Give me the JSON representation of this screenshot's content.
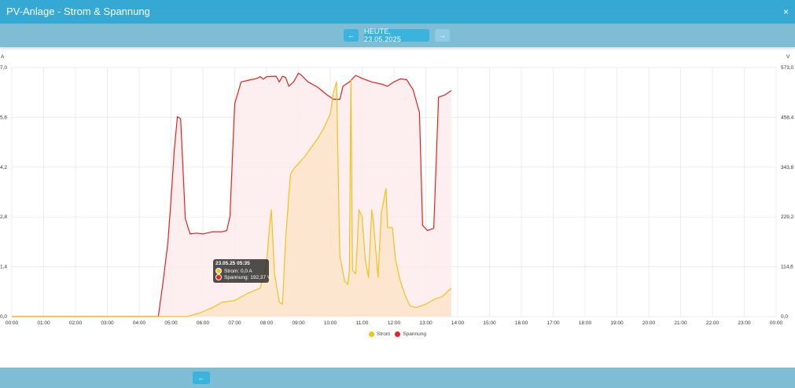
{
  "window": {
    "title": "PV-Anlage - Strom & Spannung",
    "close_glyph": "×"
  },
  "nav": {
    "prev_glyph": "←",
    "date_label": "HEUTE, 23.05.2025",
    "next_glyph": "→"
  },
  "footer": {
    "back_glyph": "←"
  },
  "tooltip": {
    "title": "23.05.25 05:35",
    "rows": [
      {
        "label": "Strom: 0,0 A",
        "color": "#f5c518"
      },
      {
        "label": "Spannung: 192,37 V",
        "color": "#e8201f"
      }
    ]
  },
  "colors": {
    "strom": "#f2c21a",
    "spannung": "#e8201f",
    "strom_fill": "#fbe3c8",
    "spannung_fill": "#fcebeb"
  },
  "chart_data": {
    "type": "line",
    "left_axis_unit": "A",
    "right_axis_unit": "V",
    "left_ticks": [
      "0,0",
      "1,4",
      "2,8",
      "4,2",
      "5,6",
      "7,0"
    ],
    "right_ticks": [
      "0,0",
      "114,6",
      "229,2",
      "343,8",
      "458,4",
      "573,0"
    ],
    "ylim_left": [
      0,
      7.0
    ],
    "ylim_right": [
      0,
      573.0
    ],
    "xlim": [
      0,
      24
    ],
    "x_ticks": [
      "00:00",
      "01:00",
      "02:00",
      "03:00",
      "04:00",
      "05:00",
      "06:00",
      "07:00",
      "08:00",
      "09:00",
      "10:00",
      "11:00",
      "12:00",
      "13:00",
      "14:00",
      "15:00",
      "16:00",
      "17:00",
      "18:00",
      "19:00",
      "20:00",
      "21:00",
      "22:00",
      "23:00",
      "00:00"
    ],
    "grid": true,
    "legend_position": "bottom",
    "series": [
      {
        "name": "Strom",
        "axis": "left",
        "x": [
          0,
          4.5,
          5.5,
          5.9,
          6.3,
          6.6,
          7.0,
          7.4,
          7.8,
          8.0,
          8.1,
          8.15,
          8.25,
          8.4,
          8.5,
          8.6,
          8.75,
          8.85,
          9.0,
          9.2,
          9.4,
          9.6,
          9.8,
          10.0,
          10.1,
          10.2,
          10.25,
          10.3,
          10.45,
          10.55,
          10.6,
          10.65,
          10.7,
          10.8,
          10.9,
          11.0,
          11.1,
          11.2,
          11.3,
          11.35,
          11.5,
          11.6,
          11.75,
          11.8,
          11.95,
          12.05,
          12.2,
          12.35,
          12.5,
          12.7,
          13.0,
          13.3,
          13.5,
          13.8
        ],
        "y": [
          0,
          0,
          0,
          0.1,
          0.25,
          0.4,
          0.45,
          0.65,
          0.8,
          1.5,
          2.6,
          3.0,
          1.2,
          0.4,
          0.35,
          2.2,
          4.0,
          4.15,
          4.3,
          4.5,
          4.75,
          5.0,
          5.3,
          5.7,
          6.3,
          6.6,
          4.0,
          1.7,
          1.0,
          0.9,
          1.3,
          6.65,
          1.3,
          1.2,
          3.0,
          2.8,
          1.6,
          1.1,
          3.0,
          2.7,
          1.1,
          2.9,
          3.6,
          2.5,
          2.5,
          1.6,
          1.0,
          0.6,
          0.3,
          0.25,
          0.35,
          0.5,
          0.55,
          0.8
        ]
      },
      {
        "name": "Spannung",
        "axis": "right",
        "x": [
          0,
          4.6,
          4.75,
          4.9,
          5.0,
          5.1,
          5.2,
          5.3,
          5.45,
          5.6,
          5.8,
          6.0,
          6.3,
          6.6,
          6.75,
          6.85,
          7.0,
          7.2,
          7.5,
          7.7,
          7.8,
          7.9,
          8.0,
          8.3,
          8.4,
          8.5,
          8.6,
          8.7,
          8.85,
          9.0,
          9.1,
          9.3,
          9.6,
          9.9,
          10.1,
          10.3,
          10.4,
          10.6,
          10.8,
          11.0,
          11.3,
          11.6,
          11.8,
          12.0,
          12.2,
          12.4,
          12.6,
          12.8,
          12.9,
          13.05,
          13.25,
          13.4,
          13.6,
          13.8
        ],
        "y": [
          0,
          0,
          80,
          170,
          270,
          380,
          460,
          455,
          225,
          190,
          192,
          190,
          195,
          195,
          198,
          230,
          490,
          540,
          545,
          548,
          552,
          546,
          552,
          553,
          540,
          553,
          550,
          530,
          540,
          560,
          555,
          540,
          528,
          510,
          500,
          500,
          530,
          540,
          555,
          548,
          540,
          535,
          530,
          540,
          547,
          545,
          522,
          470,
          210,
          198,
          203,
          505,
          510,
          520
        ]
      }
    ]
  }
}
